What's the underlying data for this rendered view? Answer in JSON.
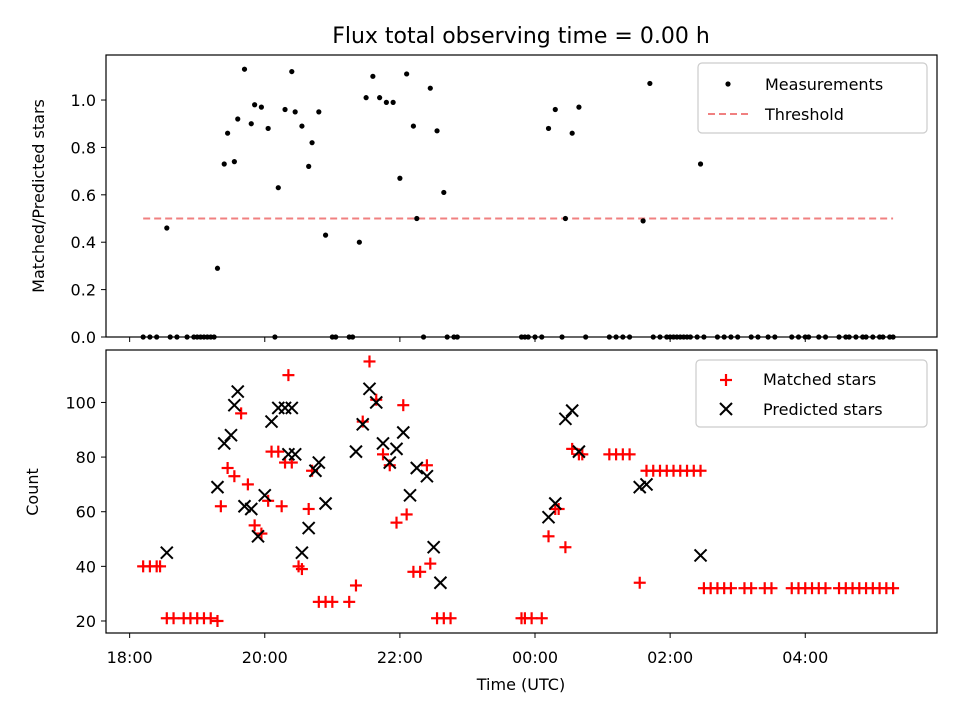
{
  "chart_data": [
    {
      "type": "scatter",
      "title": "Flux total observing time = 0.00 h",
      "xlabel": "",
      "ylabel": "Matched/Predicted stars",
      "xlim": [
        -6.35,
        5.95
      ],
      "ylim": [
        0,
        1.19
      ],
      "xticks": [
        -6,
        -4,
        -2,
        0,
        2,
        4
      ],
      "yticks": [
        0.0,
        0.2,
        0.4,
        0.6,
        0.8,
        1.0
      ],
      "ytick_labels": [
        "0.0",
        "0.2",
        "0.4",
        "0.6",
        "0.8",
        "1.0"
      ],
      "legend": {
        "position": "top-right",
        "entries": [
          "Measurements",
          "Threshold"
        ]
      },
      "threshold": {
        "name": "Threshold",
        "y": 0.5,
        "x_range": [
          -5.8,
          5.3
        ],
        "color": "#f08080"
      },
      "series": [
        {
          "name": "Measurements",
          "color": "#000000",
          "points": [
            [
              -5.8,
              0
            ],
            [
              -5.7,
              0
            ],
            [
              -5.6,
              0
            ],
            [
              -5.45,
              0.46
            ],
            [
              -5.4,
              0
            ],
            [
              -5.3,
              0
            ],
            [
              -5.15,
              0
            ],
            [
              -5.05,
              0
            ],
            [
              -5.0,
              0
            ],
            [
              -4.95,
              0
            ],
            [
              -4.9,
              0
            ],
            [
              -4.85,
              0
            ],
            [
              -4.8,
              0
            ],
            [
              -4.75,
              0
            ],
            [
              -4.7,
              0.29
            ],
            [
              -4.6,
              0.73
            ],
            [
              -4.55,
              0.86
            ],
            [
              -4.45,
              0.74
            ],
            [
              -4.4,
              0.92
            ],
            [
              -4.3,
              1.13
            ],
            [
              -4.2,
              0.9
            ],
            [
              -4.15,
              0.98
            ],
            [
              -4.05,
              0.97
            ],
            [
              -3.95,
              0.88
            ],
            [
              -3.85,
              0.0
            ],
            [
              -3.8,
              0.63
            ],
            [
              -3.7,
              0.96
            ],
            [
              -3.6,
              1.12
            ],
            [
              -3.55,
              0.95
            ],
            [
              -3.45,
              0.89
            ],
            [
              -3.35,
              0.72
            ],
            [
              -3.3,
              0.82
            ],
            [
              -3.2,
              0.95
            ],
            [
              -3.1,
              0.43
            ],
            [
              -3.0,
              0
            ],
            [
              -2.95,
              0
            ],
            [
              -2.75,
              0
            ],
            [
              -2.7,
              0
            ],
            [
              -2.6,
              0.4
            ],
            [
              -2.5,
              1.01
            ],
            [
              -2.4,
              1.1
            ],
            [
              -2.3,
              1.01
            ],
            [
              -2.2,
              0.99
            ],
            [
              -2.1,
              0.99
            ],
            [
              -2.0,
              0.67
            ],
            [
              -1.9,
              1.11
            ],
            [
              -1.8,
              0.89
            ],
            [
              -1.75,
              0.5
            ],
            [
              -1.65,
              0
            ],
            [
              -1.55,
              1.05
            ],
            [
              -1.45,
              0.87
            ],
            [
              -1.35,
              0.61
            ],
            [
              -1.3,
              0
            ],
            [
              -1.2,
              0
            ],
            [
              -1.15,
              0
            ],
            [
              -0.2,
              0
            ],
            [
              -0.15,
              0
            ],
            [
              -0.1,
              0
            ],
            [
              0.0,
              0
            ],
            [
              0.1,
              0
            ],
            [
              0.2,
              0.88
            ],
            [
              0.3,
              0.96
            ],
            [
              0.4,
              0
            ],
            [
              0.45,
              0.5
            ],
            [
              0.55,
              0.86
            ],
            [
              0.65,
              0.97
            ],
            [
              0.75,
              0
            ],
            [
              1.1,
              0
            ],
            [
              1.2,
              0
            ],
            [
              1.3,
              0
            ],
            [
              1.4,
              0
            ],
            [
              1.6,
              0.49
            ],
            [
              1.7,
              1.07
            ],
            [
              1.75,
              0
            ],
            [
              1.85,
              0
            ],
            [
              1.95,
              0
            ],
            [
              2.0,
              0
            ],
            [
              2.05,
              0
            ],
            [
              2.1,
              0
            ],
            [
              2.15,
              0
            ],
            [
              2.2,
              0
            ],
            [
              2.25,
              0
            ],
            [
              2.3,
              0
            ],
            [
              2.4,
              0
            ],
            [
              2.45,
              0.73
            ],
            [
              2.5,
              0
            ],
            [
              2.7,
              0
            ],
            [
              2.8,
              0
            ],
            [
              2.9,
              0
            ],
            [
              3.0,
              0
            ],
            [
              3.2,
              0
            ],
            [
              3.3,
              0
            ],
            [
              3.45,
              0
            ],
            [
              3.55,
              0
            ],
            [
              3.8,
              0
            ],
            [
              3.9,
              0
            ],
            [
              4.0,
              0
            ],
            [
              4.05,
              0
            ],
            [
              4.2,
              0
            ],
            [
              4.3,
              0
            ],
            [
              4.5,
              0
            ],
            [
              4.6,
              0
            ],
            [
              4.65,
              0
            ],
            [
              4.75,
              0
            ],
            [
              4.85,
              0
            ],
            [
              4.9,
              0
            ],
            [
              5.0,
              0
            ],
            [
              5.1,
              0
            ],
            [
              5.15,
              0
            ],
            [
              5.25,
              0
            ],
            [
              5.3,
              0
            ]
          ]
        }
      ]
    },
    {
      "type": "scatter",
      "title": "",
      "xlabel": "Time (UTC)",
      "ylabel": "Count",
      "xlim": [
        -6.35,
        5.95
      ],
      "ylim": [
        15.6,
        119.2
      ],
      "xticks": [
        -6,
        -4,
        -2,
        0,
        2,
        4
      ],
      "xtick_labels": [
        "18:00",
        "20:00",
        "22:00",
        "00:00",
        "02:00",
        "04:00"
      ],
      "yticks": [
        20,
        40,
        60,
        80,
        100
      ],
      "legend": {
        "position": "top-right",
        "entries": [
          "Matched stars",
          "Predicted stars"
        ]
      },
      "series": [
        {
          "name": "Matched stars",
          "color": "#ff0000",
          "marker": "plus",
          "points": [
            [
              -5.8,
              40
            ],
            [
              -5.7,
              40
            ],
            [
              -5.6,
              40
            ],
            [
              -5.55,
              40
            ],
            [
              -5.45,
              21
            ],
            [
              -5.35,
              21
            ],
            [
              -5.2,
              21
            ],
            [
              -5.1,
              21
            ],
            [
              -5.0,
              21
            ],
            [
              -4.9,
              21
            ],
            [
              -4.8,
              21
            ],
            [
              -4.7,
              20
            ],
            [
              -4.65,
              62
            ],
            [
              -4.55,
              76
            ],
            [
              -4.45,
              73
            ],
            [
              -4.35,
              96
            ],
            [
              -4.25,
              70
            ],
            [
              -4.15,
              55
            ],
            [
              -4.05,
              52
            ],
            [
              -3.95,
              64
            ],
            [
              -3.9,
              82
            ],
            [
              -3.8,
              82
            ],
            [
              -3.75,
              62
            ],
            [
              -3.7,
              78
            ],
            [
              -3.65,
              110
            ],
            [
              -3.6,
              78
            ],
            [
              -3.5,
              40
            ],
            [
              -3.45,
              39
            ],
            [
              -3.35,
              61
            ],
            [
              -3.3,
              75
            ],
            [
              -3.2,
              27
            ],
            [
              -3.1,
              27
            ],
            [
              -3.0,
              27
            ],
            [
              -2.75,
              27
            ],
            [
              -2.65,
              33
            ],
            [
              -2.55,
              93
            ],
            [
              -2.45,
              115
            ],
            [
              -2.35,
              101
            ],
            [
              -2.25,
              81
            ],
            [
              -2.15,
              77
            ],
            [
              -2.05,
              56
            ],
            [
              -1.95,
              99
            ],
            [
              -1.9,
              59
            ],
            [
              -1.8,
              38
            ],
            [
              -1.7,
              38
            ],
            [
              -1.6,
              77
            ],
            [
              -1.55,
              41
            ],
            [
              -1.45,
              21
            ],
            [
              -1.35,
              21
            ],
            [
              -1.25,
              21
            ],
            [
              -0.2,
              21
            ],
            [
              -0.15,
              21
            ],
            [
              -0.05,
              21
            ],
            [
              0.1,
              21
            ],
            [
              0.2,
              51
            ],
            [
              0.3,
              61
            ],
            [
              0.35,
              61
            ],
            [
              0.45,
              47
            ],
            [
              0.55,
              83
            ],
            [
              0.65,
              81
            ],
            [
              0.7,
              81
            ],
            [
              1.1,
              81
            ],
            [
              1.2,
              81
            ],
            [
              1.3,
              81
            ],
            [
              1.4,
              81
            ],
            [
              1.55,
              34
            ],
            [
              1.65,
              75
            ],
            [
              1.75,
              75
            ],
            [
              1.85,
              75
            ],
            [
              1.95,
              75
            ],
            [
              2.05,
              75
            ],
            [
              2.15,
              75
            ],
            [
              2.25,
              75
            ],
            [
              2.35,
              75
            ],
            [
              2.45,
              75
            ],
            [
              2.5,
              32
            ],
            [
              2.6,
              32
            ],
            [
              2.7,
              32
            ],
            [
              2.8,
              32
            ],
            [
              2.9,
              32
            ],
            [
              3.1,
              32
            ],
            [
              3.2,
              32
            ],
            [
              3.4,
              32
            ],
            [
              3.5,
              32
            ],
            [
              3.8,
              32
            ],
            [
              3.9,
              32
            ],
            [
              4.0,
              32
            ],
            [
              4.1,
              32
            ],
            [
              4.2,
              32
            ],
            [
              4.3,
              32
            ],
            [
              4.5,
              32
            ],
            [
              4.6,
              32
            ],
            [
              4.7,
              32
            ],
            [
              4.8,
              32
            ],
            [
              4.9,
              32
            ],
            [
              5.0,
              32
            ],
            [
              5.1,
              32
            ],
            [
              5.2,
              32
            ],
            [
              5.3,
              32
            ]
          ]
        },
        {
          "name": "Predicted stars",
          "color": "#000000",
          "marker": "x",
          "points": [
            [
              -5.45,
              45
            ],
            [
              -4.7,
              69
            ],
            [
              -4.6,
              85
            ],
            [
              -4.5,
              88
            ],
            [
              -4.45,
              99
            ],
            [
              -4.4,
              104
            ],
            [
              -4.3,
              62
            ],
            [
              -4.2,
              61
            ],
            [
              -4.1,
              51
            ],
            [
              -4.0,
              66
            ],
            [
              -3.9,
              93
            ],
            [
              -3.8,
              98
            ],
            [
              -3.7,
              98
            ],
            [
              -3.65,
              81
            ],
            [
              -3.6,
              98
            ],
            [
              -3.55,
              81
            ],
            [
              -3.45,
              45
            ],
            [
              -3.35,
              54
            ],
            [
              -3.25,
              75
            ],
            [
              -3.2,
              78
            ],
            [
              -3.1,
              63
            ],
            [
              -2.65,
              82
            ],
            [
              -2.55,
              92
            ],
            [
              -2.45,
              105
            ],
            [
              -2.35,
              100
            ],
            [
              -2.25,
              85
            ],
            [
              -2.15,
              78
            ],
            [
              -2.05,
              83
            ],
            [
              -1.95,
              89
            ],
            [
              -1.85,
              66
            ],
            [
              -1.75,
              76
            ],
            [
              -1.6,
              73
            ],
            [
              -1.5,
              47
            ],
            [
              -1.4,
              34
            ],
            [
              0.2,
              58
            ],
            [
              0.3,
              63
            ],
            [
              0.45,
              94
            ],
            [
              0.55,
              97
            ],
            [
              0.65,
              82
            ],
            [
              1.55,
              69
            ],
            [
              1.65,
              70
            ],
            [
              2.45,
              44
            ]
          ]
        }
      ]
    }
  ]
}
